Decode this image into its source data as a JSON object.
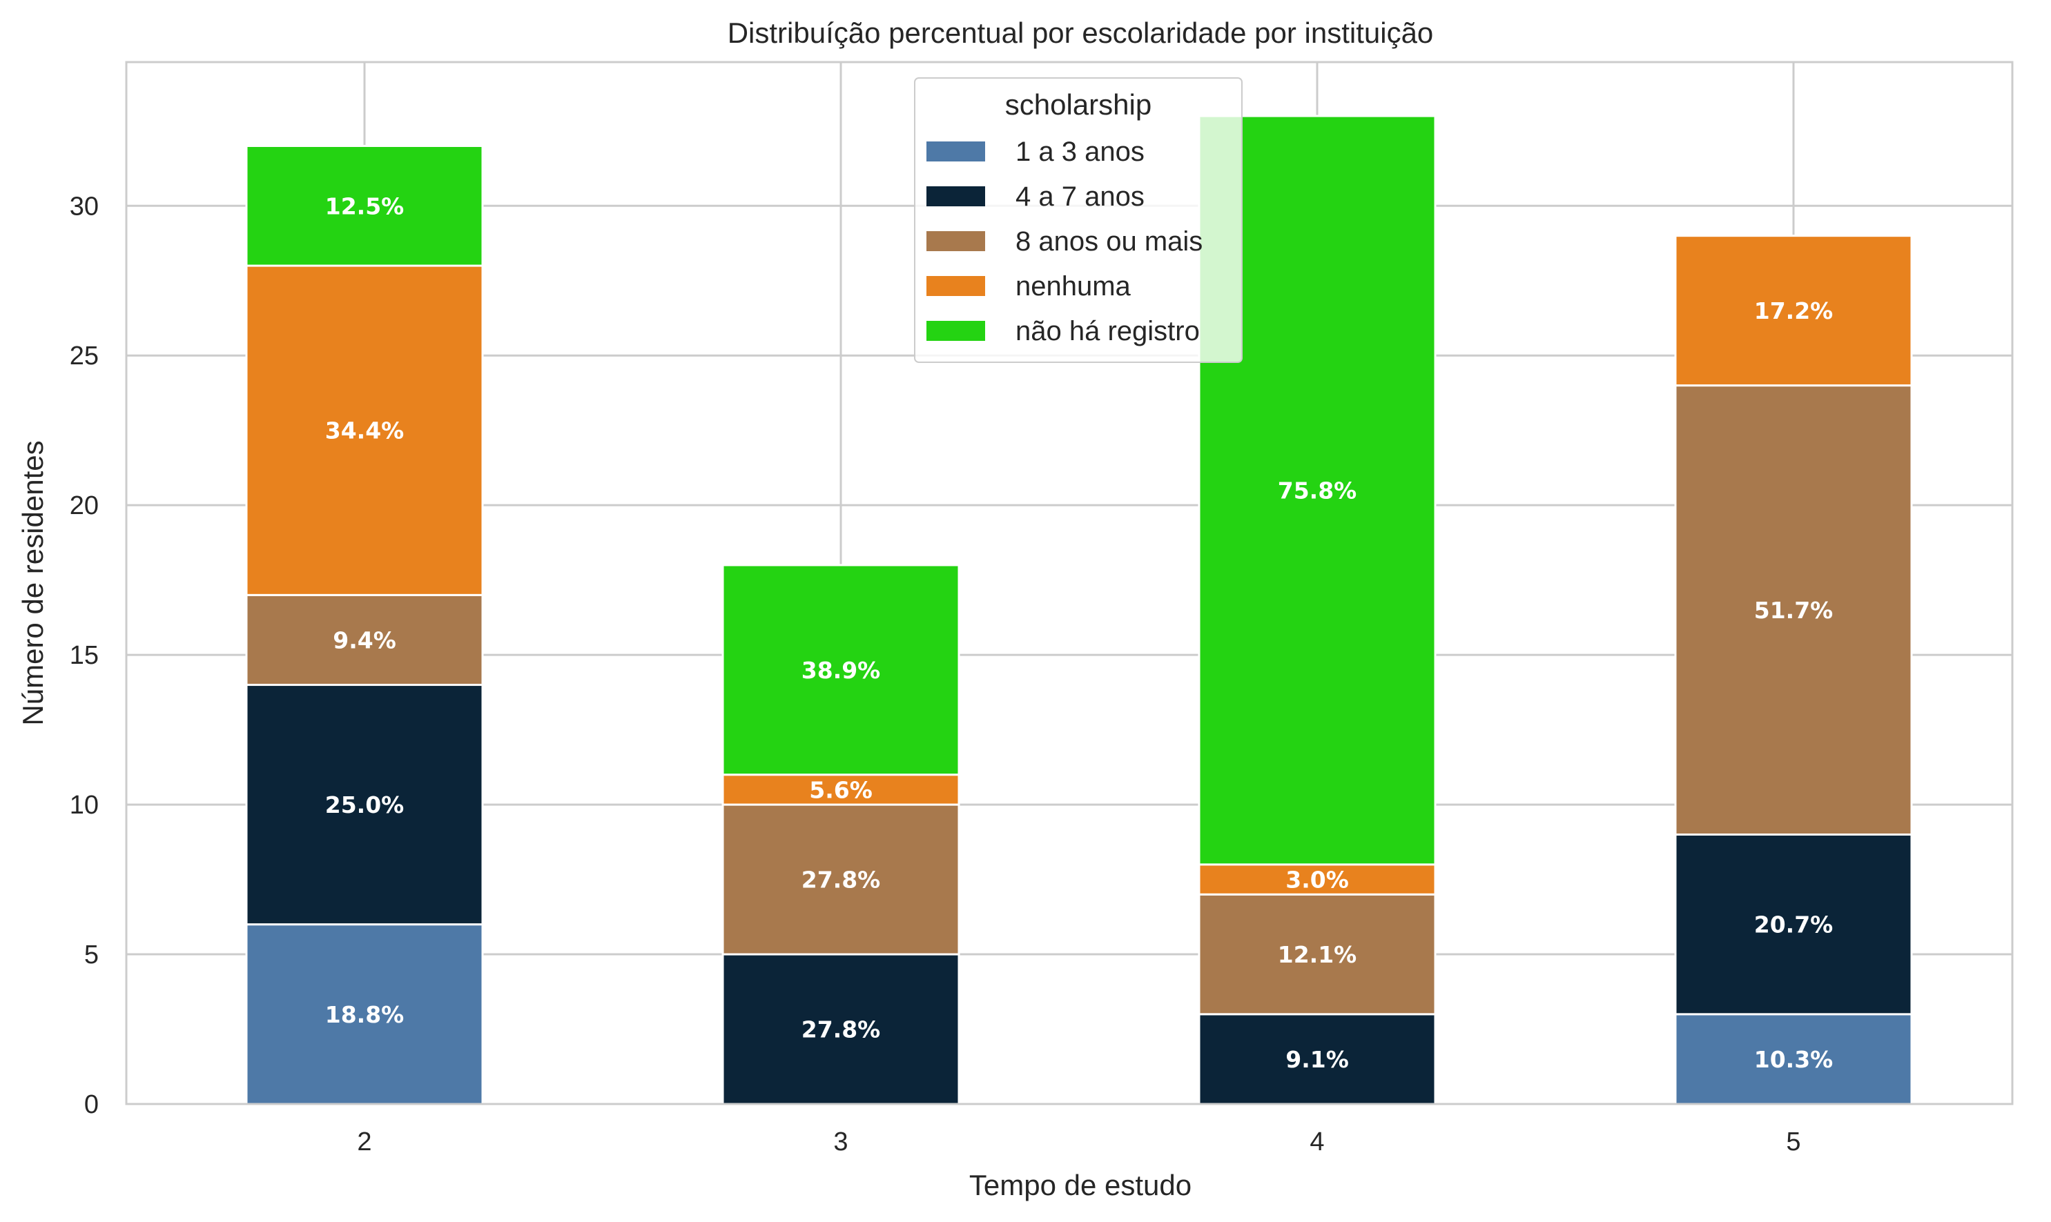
{
  "chart_data": {
    "type": "bar",
    "stacked": true,
    "title": "Distribuíção percentual por escolaridade por instituição",
    "xlabel": "Tempo de estudo",
    "ylabel": "Número de residentes",
    "categories": [
      "2",
      "3",
      "4",
      "5"
    ],
    "ylim": [
      0,
      34.8
    ],
    "yticks": [
      0,
      5,
      10,
      15,
      20,
      25,
      30
    ],
    "grid": true,
    "legend": {
      "title": "scholarship",
      "placement": "top-center"
    },
    "series": [
      {
        "name": "1 a 3 anos",
        "color": "#4e79a7",
        "values": [
          6,
          0,
          0,
          3
        ],
        "labels": [
          "18.8%",
          "",
          "",
          "10.3%"
        ]
      },
      {
        "name": "4 a 7 anos",
        "color": "#0b2438",
        "values": [
          8,
          5,
          3,
          6
        ],
        "labels": [
          "25.0%",
          "27.8%",
          "9.1%",
          "20.7%"
        ]
      },
      {
        "name": "8 anos ou mais",
        "color": "#a8794d",
        "values": [
          3,
          5,
          4,
          15
        ],
        "labels": [
          "9.4%",
          "27.8%",
          "12.1%",
          "51.7%"
        ]
      },
      {
        "name": "nenhuma",
        "color": "#e8821e",
        "values": [
          11,
          1,
          1,
          5
        ],
        "labels": [
          "34.4%",
          "5.6%",
          "3.0%",
          "17.2%"
        ]
      },
      {
        "name": "não há registro",
        "color": "#24d312",
        "values": [
          4,
          7,
          25,
          0
        ],
        "labels": [
          "12.5%",
          "38.9%",
          "75.8%",
          ""
        ]
      }
    ]
  }
}
